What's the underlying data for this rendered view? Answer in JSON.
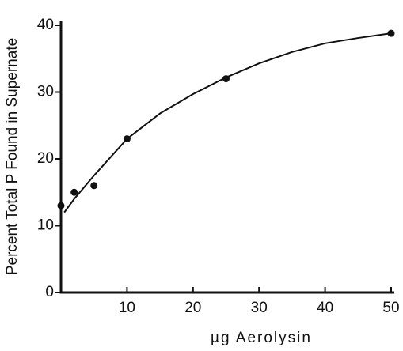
{
  "chart_data": {
    "type": "scatter",
    "x_label": "µg Aerolysin",
    "y_label": "Percent Total P Found in Supernate",
    "xlim": [
      0,
      50
    ],
    "ylim": [
      0,
      40
    ],
    "xticks": [
      10,
      20,
      30,
      40,
      50
    ],
    "yticks": [
      0,
      10,
      20,
      30,
      40
    ],
    "grid": false,
    "series": [
      {
        "kind": "points",
        "color": "#111111",
        "x": [
          0,
          2,
          5,
          10,
          25,
          50
        ],
        "values": [
          13,
          15,
          16,
          23,
          32,
          38.8
        ]
      },
      {
        "kind": "line",
        "color": "#111111",
        "x": [
          0.5,
          2,
          5,
          10,
          15,
          20,
          25,
          30,
          35,
          40,
          45,
          50
        ],
        "values": [
          12,
          14,
          17.5,
          23,
          26.8,
          29.7,
          32.2,
          34.3,
          36,
          37.3,
          38.1,
          38.8
        ]
      }
    ]
  }
}
